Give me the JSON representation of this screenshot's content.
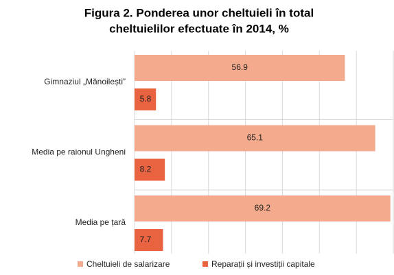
{
  "chart_data": {
    "type": "hbar",
    "title": [
      "Figura 2. Ponderea unor cheltuieli în total",
      "cheltuielilor efectuate în 2014, %"
    ],
    "categories": [
      "Gimnaziul „Mănoilești”",
      "Media pe raionul Ungheni",
      "Media pe țară"
    ],
    "series": [
      {
        "name": "Cheltuieli de salarizare",
        "color": "#f4aa8c",
        "values": [
          56.9,
          65.1,
          69.2
        ]
      },
      {
        "name": "Reparații și investiții capitale",
        "color": "#ea6340",
        "values": [
          5.8,
          8.2,
          7.7
        ]
      }
    ],
    "xlim": [
      0,
      70
    ],
    "xticks": [
      0,
      10,
      20,
      30,
      40,
      50,
      60,
      70
    ],
    "grid": true,
    "legend": "bottom"
  }
}
